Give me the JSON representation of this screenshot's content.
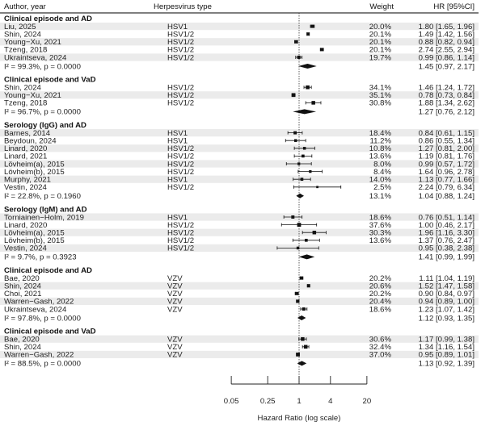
{
  "chart_data": {
    "type": "forest",
    "xlabel": "Hazard Ratio (log scale)",
    "xscale": "log",
    "xlim": [
      0.05,
      20
    ],
    "reference_line": 1,
    "ticks": [
      "0.05",
      "0.25",
      "1",
      "4",
      "20"
    ],
    "tick_values": [
      0.05,
      0.25,
      1,
      4,
      20
    ],
    "columns": {
      "author": "Author, year",
      "type": "Herpesvirus type",
      "weight": "Weight",
      "hr": "HR [95%CI]"
    },
    "colors": {
      "marker": "#111111",
      "row_shade": "#ebebeb",
      "rule": "#555555"
    },
    "groups": [
      {
        "label": "Clinical episode and AD",
        "studies": [
          {
            "author": "Liu, 2025",
            "type": "HSV1",
            "weight": "20.0%",
            "hr": 1.8,
            "lo": 1.65,
            "hi": 1.96,
            "text": "1.80 [1.65, 1.96]"
          },
          {
            "author": "Shin, 2024",
            "type": "HSV1/2",
            "weight": "20.1%",
            "hr": 1.49,
            "lo": 1.42,
            "hi": 1.56,
            "text": "1.49 [1.42, 1.56]"
          },
          {
            "author": "Young−Xu, 2021",
            "type": "HSV1/2",
            "weight": "20.1%",
            "hr": 0.88,
            "lo": 0.82,
            "hi": 0.94,
            "text": "0.88 [0.82, 0.94]"
          },
          {
            "author": "Tzeng, 2018",
            "type": "HSV1/2",
            "weight": "20.1%",
            "hr": 2.74,
            "lo": 2.55,
            "hi": 2.94,
            "text": "2.74 [2.55, 2.94]"
          },
          {
            "author": "Ukraintseva, 2024",
            "type": "HSV1/2",
            "weight": "19.7%",
            "hr": 0.99,
            "lo": 0.86,
            "hi": 1.14,
            "text": "0.99 [0.86, 1.14]"
          }
        ],
        "summary": {
          "het": "I² = 99.3%, p = 0.0000",
          "hr": 1.45,
          "lo": 0.97,
          "hi": 2.17,
          "text": "1.45 [0.97, 2.17]"
        }
      },
      {
        "label": "Clinical episode and VaD",
        "studies": [
          {
            "author": "Shin, 2024",
            "type": "HSV1/2",
            "weight": "34.1%",
            "hr": 1.46,
            "lo": 1.24,
            "hi": 1.72,
            "text": "1.46 [1.24, 1.72]"
          },
          {
            "author": "Young−Xu, 2021",
            "type": "HSV1/2",
            "weight": "35.1%",
            "hr": 0.78,
            "lo": 0.73,
            "hi": 0.84,
            "text": "0.78 [0.73, 0.84]"
          },
          {
            "author": "Tzeng, 2018",
            "type": "HSV1/2",
            "weight": "30.8%",
            "hr": 1.88,
            "lo": 1.34,
            "hi": 2.62,
            "text": "1.88 [1.34, 2.62]"
          }
        ],
        "summary": {
          "het": "I² = 96.7%, p = 0.0000",
          "hr": 1.27,
          "lo": 0.76,
          "hi": 2.12,
          "text": "1.27 [0.76, 2.12]"
        }
      },
      {
        "label": "Serology (IgG) and AD",
        "studies": [
          {
            "author": "Barnes, 2014",
            "type": "HSV1",
            "weight": "18.4%",
            "hr": 0.84,
            "lo": 0.61,
            "hi": 1.15,
            "text": "0.84 [0.61, 1.15]"
          },
          {
            "author": "Beydoun, 2024",
            "type": "HSV1",
            "weight": "11.2%",
            "hr": 0.86,
            "lo": 0.55,
            "hi": 1.34,
            "text": "0.86 [0.55, 1.34]"
          },
          {
            "author": "Linard, 2020",
            "type": "HSV1/2",
            "weight": "10.8%",
            "hr": 1.27,
            "lo": 0.81,
            "hi": 2.0,
            "text": "1.27 [0.81, 2.00]"
          },
          {
            "author": "Linard, 2021",
            "type": "HSV1/2",
            "weight": "13.6%",
            "hr": 1.19,
            "lo": 0.81,
            "hi": 1.76,
            "text": "1.19 [0.81, 1.76]"
          },
          {
            "author": "Lövheim(a), 2015",
            "type": "HSV1/2",
            "weight": "8.0%",
            "hr": 0.99,
            "lo": 0.57,
            "hi": 1.72,
            "text": "0.99 [0.57, 1.72]"
          },
          {
            "author": "Lövheim(b), 2015",
            "type": "HSV1/2",
            "weight": "8.4%",
            "hr": 1.64,
            "lo": 0.96,
            "hi": 2.78,
            "text": "1.64 [0.96, 2.78]"
          },
          {
            "author": "Murphy, 2021",
            "type": "HSV1",
            "weight": "14.0%",
            "hr": 1.13,
            "lo": 0.77,
            "hi": 1.66,
            "text": "1.13 [0.77, 1.66]"
          },
          {
            "author": "Vestin, 2024",
            "type": "HSV1/2",
            "weight": "2.5%",
            "hr": 2.24,
            "lo": 0.79,
            "hi": 6.34,
            "text": "2.24 [0.79, 6.34]"
          }
        ],
        "summary": {
          "het": "I² = 22.8%, p = 0.1960",
          "weight": "13.1%",
          "hr": 1.04,
          "lo": 0.88,
          "hi": 1.24,
          "text": "1.04 [0.88, 1.24]"
        }
      },
      {
        "label": "Serology (IgM) and AD",
        "studies": [
          {
            "author": "Torniainen−Holm, 2019",
            "type": "HSV1",
            "weight": "18.6%",
            "hr": 0.76,
            "lo": 0.51,
            "hi": 1.14,
            "text": "0.76 [0.51, 1.14]"
          },
          {
            "author": "Linard, 2020",
            "type": "HSV1/2",
            "weight": "37.6%",
            "hr": 1.0,
            "lo": 0.46,
            "hi": 2.17,
            "text": "1.00 [0.46, 2.17]"
          },
          {
            "author": "Lövheim(a), 2015",
            "type": "HSV1/2",
            "weight": "30.3%",
            "hr": 1.96,
            "lo": 1.16,
            "hi": 3.3,
            "text": "1.96 [1.16, 3.30]"
          },
          {
            "author": "Lövheim(b), 2015",
            "type": "HSV1/2",
            "weight": "13.6%",
            "hr": 1.37,
            "lo": 0.76,
            "hi": 2.47,
            "text": "1.37 [0.76, 2.47]"
          },
          {
            "author": "Vestin, 2024",
            "type": "HSV1/2",
            "weight": "",
            "hr": 0.95,
            "lo": 0.38,
            "hi": 2.38,
            "text": "0.95 [0.38, 2.38]"
          }
        ],
        "summary": {
          "het": "I² = 9.7%, p = 0.3923",
          "hr": 1.41,
          "lo": 0.99,
          "hi": 1.99,
          "text": "1.41 [0.99, 1.99]"
        }
      },
      {
        "label": "Clinical episode and AD",
        "studies": [
          {
            "author": "Bae, 2020",
            "type": "VZV",
            "weight": "20.2%",
            "hr": 1.11,
            "lo": 1.04,
            "hi": 1.19,
            "text": "1.11 [1.04, 1.19]"
          },
          {
            "author": "Shin, 2024",
            "type": "VZV",
            "weight": "20.6%",
            "hr": 1.52,
            "lo": 1.47,
            "hi": 1.58,
            "text": "1.52 [1.47, 1.58]"
          },
          {
            "author": "Choi, 2021",
            "type": "VZV",
            "weight": "20.2%",
            "hr": 0.9,
            "lo": 0.84,
            "hi": 0.97,
            "text": "0.90 [0.84, 0.97]"
          },
          {
            "author": "Warren−Gash, 2022",
            "type": "VZV",
            "weight": "20.4%",
            "hr": 0.94,
            "lo": 0.89,
            "hi": 1.0,
            "text": "0.94 [0.89, 1.00]"
          },
          {
            "author": "Ukraintseva, 2024",
            "type": "VZV",
            "weight": "18.6%",
            "hr": 1.23,
            "lo": 1.07,
            "hi": 1.42,
            "text": "1.23 [1.07, 1.42]"
          }
        ],
        "summary": {
          "het": "I² = 97.8%, p = 0.0000",
          "hr": 1.12,
          "lo": 0.93,
          "hi": 1.35,
          "text": "1.12 [0.93, 1.35]"
        }
      },
      {
        "label": "Clinical episode and VaD",
        "studies": [
          {
            "author": "Bae, 2020",
            "type": "VZV",
            "weight": "30.6%",
            "hr": 1.17,
            "lo": 0.99,
            "hi": 1.38,
            "text": "1.17 [0.99, 1.38]"
          },
          {
            "author": "Shin, 2024",
            "type": "VZV",
            "weight": "32.4%",
            "hr": 1.34,
            "lo": 1.16,
            "hi": 1.54,
            "text": "1.34 [1.16, 1.54]"
          },
          {
            "author": "Warren−Gash, 2022",
            "type": "VZV",
            "weight": "37.0%",
            "hr": 0.95,
            "lo": 0.89,
            "hi": 1.01,
            "text": "0.95 [0.89, 1.01]"
          }
        ],
        "summary": {
          "het": "I² = 88.5%, p = 0.0000",
          "hr": 1.13,
          "lo": 0.92,
          "hi": 1.39,
          "text": "1.13 [0.92, 1.39]"
        }
      }
    ]
  }
}
